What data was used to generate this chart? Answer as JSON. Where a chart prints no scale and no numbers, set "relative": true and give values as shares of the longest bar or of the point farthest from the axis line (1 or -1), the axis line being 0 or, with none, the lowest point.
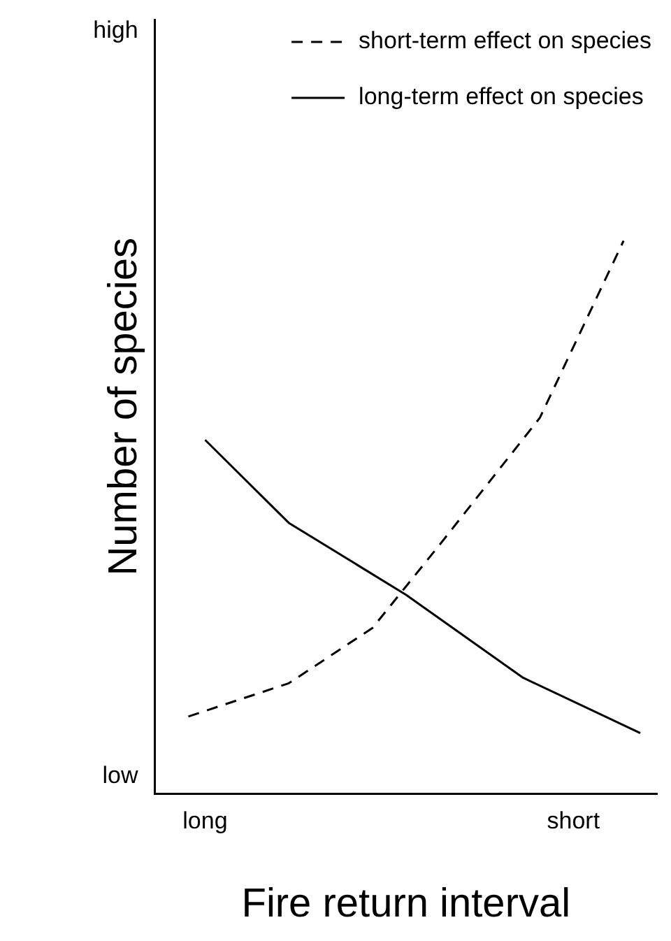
{
  "chart_data": {
    "type": "line",
    "relative": true,
    "xlabel": "Fire return interval",
    "ylabel": "Number of species",
    "categories": [
      null,
      null,
      null,
      "long",
      null,
      null,
      null,
      null,
      null,
      null,
      null,
      null,
      null,
      null,
      null,
      null,
      null,
      null,
      null,
      null,
      null,
      null,
      null,
      null,
      null,
      "short",
      null,
      null,
      null,
      null,
      null
    ],
    "annotations": [
      "high",
      "low"
    ],
    "grid": false,
    "legend": "top right",
    "marker": "none",
    "series": [
      {
        "name": "short-term effect on species",
        "color": "#000000",
        "line_style": "dashed",
        "values": [
          null,
          null,
          0.14,
          null,
          null,
          null,
          null,
          null,
          0.2,
          null,
          null,
          null,
          null,
          0.3,
          null,
          null,
          null,
          0.45,
          null,
          null,
          null,
          null,
          null,
          0.68,
          null,
          null,
          null,
          null,
          1,
          null,
          null
        ]
      },
      {
        "name": "long-term effect on species",
        "color": "#000000",
        "line_style": "solid",
        "values": [
          null,
          null,
          null,
          0.64,
          null,
          null,
          null,
          null,
          0.49,
          null,
          null,
          null,
          null,
          null,
          null,
          0.36,
          null,
          null,
          null,
          null,
          null,
          null,
          0.21,
          null,
          null,
          null,
          null,
          null,
          null,
          0.11,
          null
        ]
      }
    ]
  }
}
